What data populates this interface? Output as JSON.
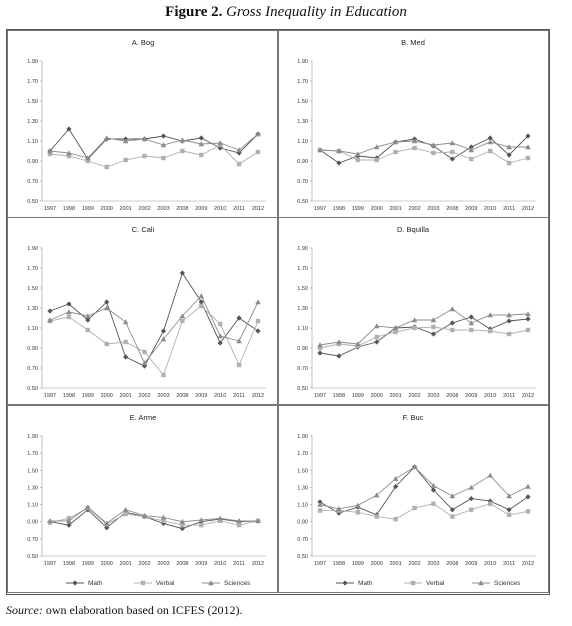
{
  "figure": {
    "number": "Figure 2.",
    "title": "Gross Inequality in Education"
  },
  "source": {
    "label": "Source:",
    "text": "own elaboration based on ICFES (2012)."
  },
  "legend": {
    "entries": [
      {
        "name": "Math",
        "marker": "diamond",
        "color": "#555555"
      },
      {
        "name": "Verbal",
        "marker": "square",
        "color": "#b0b0b0"
      },
      {
        "name": "Sciences",
        "marker": "triangle",
        "color": "#8c8c8c"
      }
    ]
  },
  "chart_data": [
    {
      "type": "line",
      "title": "A. Bog",
      "categories": [
        "1997",
        "1998",
        "1999",
        "2000",
        "2001",
        "2002",
        "2003",
        "2008",
        "2009",
        "2010",
        "2011",
        "2012"
      ],
      "yticks": [
        "0.50",
        "0.70",
        "0.90",
        "1.10",
        "1.30",
        "1.50",
        "1.70",
        "1.90"
      ],
      "ylim": [
        0.5,
        1.9
      ],
      "legend": false,
      "series": [
        {
          "name": "Math",
          "values": [
            1.0,
            1.22,
            0.92,
            1.12,
            1.12,
            1.12,
            1.15,
            1.1,
            1.13,
            1.03,
            0.98,
            1.17
          ]
        },
        {
          "name": "Verbal",
          "values": [
            0.97,
            0.95,
            0.9,
            0.84,
            0.91,
            0.95,
            0.93,
            1.0,
            0.96,
            1.06,
            0.87,
            0.99
          ]
        },
        {
          "name": "Sciences",
          "values": [
            1.0,
            0.98,
            0.93,
            1.13,
            1.1,
            1.12,
            1.06,
            1.11,
            1.07,
            1.08,
            1.01,
            1.17
          ]
        }
      ]
    },
    {
      "type": "line",
      "title": "B. Med",
      "categories": [
        "1997",
        "1998",
        "1999",
        "2000",
        "2001",
        "2002",
        "2003",
        "2008",
        "2009",
        "2010",
        "2011",
        "2012"
      ],
      "yticks": [
        "0.50",
        "0.70",
        "0.90",
        "1.10",
        "1.30",
        "1.50",
        "1.70",
        "1.90"
      ],
      "ylim": [
        0.5,
        1.9
      ],
      "legend": false,
      "series": [
        {
          "name": "Math",
          "values": [
            1.01,
            0.88,
            0.95,
            0.93,
            1.09,
            1.12,
            1.05,
            0.92,
            1.04,
            1.13,
            0.96,
            1.15
          ]
        },
        {
          "name": "Verbal",
          "values": [
            1.01,
            1.0,
            0.91,
            0.91,
            0.99,
            1.03,
            0.98,
            0.99,
            0.92,
            1.0,
            0.88,
            0.93
          ]
        },
        {
          "name": "Sciences",
          "values": [
            1.01,
            1.0,
            0.97,
            1.04,
            1.09,
            1.1,
            1.06,
            1.08,
            1.01,
            1.09,
            1.04,
            1.04
          ]
        }
      ]
    },
    {
      "type": "line",
      "title": "C. Cali",
      "categories": [
        "1997",
        "1998",
        "1999",
        "2000",
        "2001",
        "2002",
        "2003",
        "2008",
        "2009",
        "2010",
        "2011",
        "2012"
      ],
      "yticks": [
        "0.50",
        "0.70",
        "0.90",
        "1.10",
        "1.30",
        "1.50",
        "1.70",
        "1.90"
      ],
      "ylim": [
        0.5,
        1.9
      ],
      "legend": false,
      "series": [
        {
          "name": "Math",
          "values": [
            1.27,
            1.34,
            1.18,
            1.36,
            0.81,
            0.72,
            1.07,
            1.65,
            1.36,
            0.95,
            1.2,
            1.07
          ]
        },
        {
          "name": "Verbal",
          "values": [
            1.17,
            1.21,
            1.08,
            0.94,
            0.96,
            0.86,
            0.63,
            1.17,
            1.32,
            1.14,
            0.73,
            1.17
          ]
        },
        {
          "name": "Sciences",
          "values": [
            1.18,
            1.26,
            1.22,
            1.3,
            1.16,
            0.75,
            0.99,
            1.22,
            1.42,
            1.02,
            0.97,
            1.36
          ]
        }
      ]
    },
    {
      "type": "line",
      "title": "D. Bquilla",
      "categories": [
        "1997",
        "1998",
        "1999",
        "2000",
        "2001",
        "2002",
        "2003",
        "2008",
        "2009",
        "2010",
        "2011",
        "2012"
      ],
      "yticks": [
        "0.50",
        "0.70",
        "0.90",
        "1.10",
        "1.30",
        "1.50",
        "1.70",
        "1.90"
      ],
      "ylim": [
        0.5,
        1.9
      ],
      "legend": false,
      "series": [
        {
          "name": "Math",
          "values": [
            0.85,
            0.82,
            0.91,
            0.96,
            1.1,
            1.11,
            1.04,
            1.15,
            1.21,
            1.09,
            1.17,
            1.19
          ]
        },
        {
          "name": "Verbal",
          "values": [
            0.9,
            0.94,
            0.92,
            1.01,
            1.06,
            1.1,
            1.11,
            1.08,
            1.08,
            1.07,
            1.04,
            1.08
          ]
        },
        {
          "name": "Sciences",
          "values": [
            0.93,
            0.96,
            0.94,
            1.12,
            1.1,
            1.18,
            1.18,
            1.29,
            1.15,
            1.23,
            1.23,
            1.24
          ]
        }
      ]
    },
    {
      "type": "line",
      "title": "E. Arme",
      "categories": [
        "1997",
        "1998",
        "1999",
        "2000",
        "2001",
        "2002",
        "2003",
        "2008",
        "2009",
        "2010",
        "2011",
        "2012"
      ],
      "yticks": [
        "0.50",
        "0.70",
        "0.90",
        "1.10",
        "1.30",
        "1.50",
        "1.70",
        "1.90"
      ],
      "ylim": [
        0.5,
        1.9
      ],
      "legend": true,
      "series": [
        {
          "name": "Math",
          "values": [
            0.9,
            0.86,
            1.04,
            0.83,
            1.01,
            0.96,
            0.88,
            0.82,
            0.9,
            0.93,
            0.9,
            0.91
          ]
        },
        {
          "name": "Verbal",
          "values": [
            0.89,
            0.94,
            1.06,
            0.87,
            0.99,
            0.96,
            0.91,
            0.86,
            0.86,
            0.91,
            0.86,
            0.91
          ]
        },
        {
          "name": "Sciences",
          "values": [
            0.91,
            0.91,
            1.07,
            0.88,
            1.04,
            0.97,
            0.95,
            0.9,
            0.92,
            0.94,
            0.91,
            0.91
          ]
        }
      ]
    },
    {
      "type": "line",
      "title": "F. Buc",
      "categories": [
        "1997",
        "1998",
        "1999",
        "2000",
        "2001",
        "2002",
        "2003",
        "2008",
        "2009",
        "2010",
        "2011",
        "2012"
      ],
      "yticks": [
        "0.50",
        "0.70",
        "0.90",
        "1.10",
        "1.30",
        "1.50",
        "1.70",
        "1.90"
      ],
      "ylim": [
        0.5,
        1.9
      ],
      "legend": true,
      "series": [
        {
          "name": "Math",
          "values": [
            1.13,
            1.0,
            1.07,
            0.98,
            1.31,
            1.54,
            1.27,
            1.04,
            1.17,
            1.14,
            1.04,
            1.19
          ]
        },
        {
          "name": "Verbal",
          "values": [
            1.03,
            1.03,
            1.01,
            0.96,
            0.93,
            1.06,
            1.11,
            0.96,
            1.04,
            1.11,
            0.98,
            1.02
          ]
        },
        {
          "name": "Sciences",
          "values": [
            1.1,
            1.05,
            1.09,
            1.21,
            1.4,
            1.54,
            1.32,
            1.2,
            1.3,
            1.44,
            1.2,
            1.31
          ]
        }
      ]
    }
  ]
}
